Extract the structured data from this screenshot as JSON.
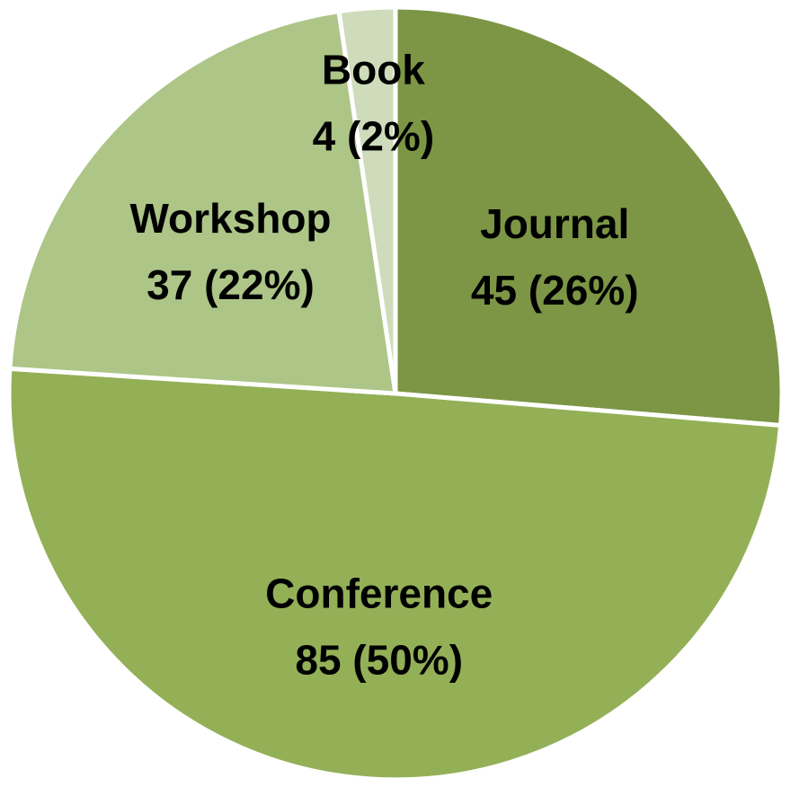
{
  "chart_data": {
    "type": "pie",
    "title": "",
    "slices": [
      {
        "name": "Journal",
        "value": 45,
        "percent_label": "45 (26%)",
        "color": "#7c9645"
      },
      {
        "name": "Conference",
        "value": 85,
        "percent_label": "85 (50%)",
        "color": "#93b057"
      },
      {
        "name": "Workshop",
        "value": 37,
        "percent_label": "37 (22%)",
        "color": "#adc587"
      },
      {
        "name": "Book",
        "value": 4,
        "percent_label": "4 (2%)",
        "color": "#cfdcbb"
      }
    ],
    "start_angle": "12 o'clock",
    "direction": "clockwise",
    "legend": "none"
  }
}
